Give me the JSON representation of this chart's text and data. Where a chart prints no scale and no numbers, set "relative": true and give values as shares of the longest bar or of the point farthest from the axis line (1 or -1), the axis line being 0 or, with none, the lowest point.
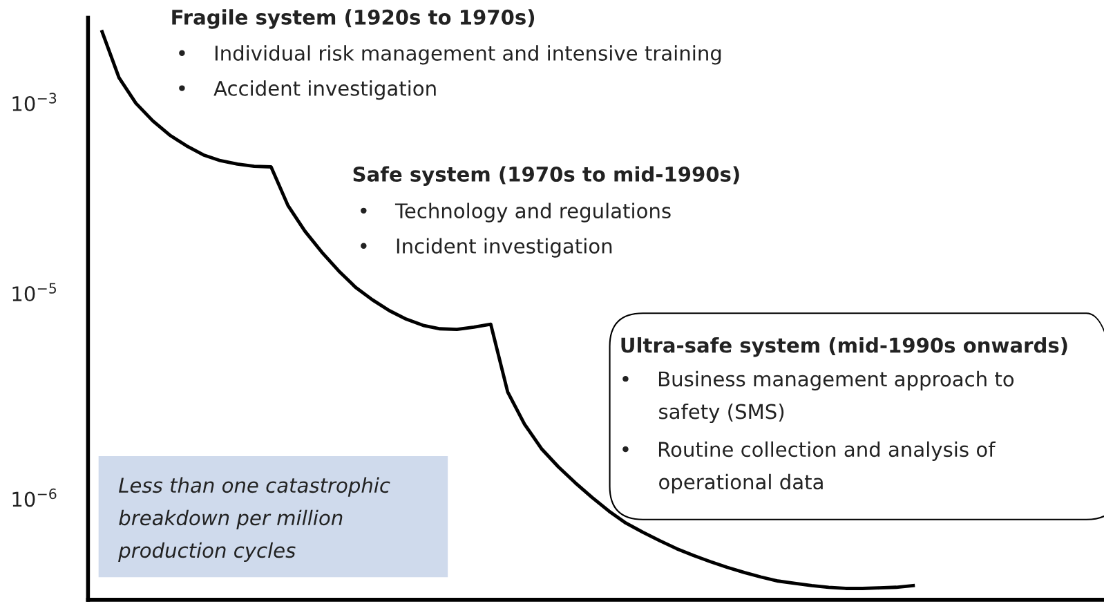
{
  "chart_data": {
    "type": "line",
    "relative": true,
    "color": "#000000",
    "categories": [
      null,
      null,
      null,
      null,
      null,
      null,
      null,
      null,
      null,
      null,
      null,
      null,
      null,
      null,
      null,
      null,
      null,
      null,
      null,
      null,
      null,
      null,
      null,
      null,
      null,
      null,
      null,
      null,
      null,
      null,
      null,
      null,
      null,
      null,
      null,
      null,
      null,
      null,
      null,
      null,
      null,
      null,
      null,
      null,
      null,
      null,
      null,
      null,
      null
    ],
    "values": [
      1.0,
      0.919,
      0.874,
      0.843,
      0.818,
      0.799,
      0.783,
      0.773,
      0.767,
      0.763,
      0.762,
      0.694,
      0.649,
      0.612,
      0.579,
      0.55,
      0.528,
      0.509,
      0.494,
      0.483,
      0.477,
      0.476,
      0.48,
      0.485,
      0.366,
      0.309,
      0.266,
      0.234,
      0.206,
      0.18,
      0.156,
      0.135,
      0.119,
      0.104,
      0.09,
      0.078,
      0.067,
      0.057,
      0.048,
      0.04,
      0.033,
      0.029,
      0.025,
      0.022,
      0.02,
      0.02,
      0.021,
      0.022,
      0.025
    ],
    "annotations": [
      "10$^{−3}$",
      "10$^{−5}$",
      "10$^{−6}$",
      "Fragile system (1920s to 1970s)",
      "•    Individual risk management and intensive training",
      "•    Accident investigation",
      "Safe system (1970s to mid-1990s)",
      "•    Technology and regulations",
      "•    Incident investigation",
      "Ultra-safe system (mid-1990s onwards)",
      "•    Business management approach to\n      safety (SMS)",
      "•    Routine collection and analysis of\n      operational data",
      "Less than one catastrophic\nbreakdown per million\nproduction cycles"
    ],
    "grid": false,
    "legend": false,
    "marker": "none",
    "line_style": "solid"
  }
}
